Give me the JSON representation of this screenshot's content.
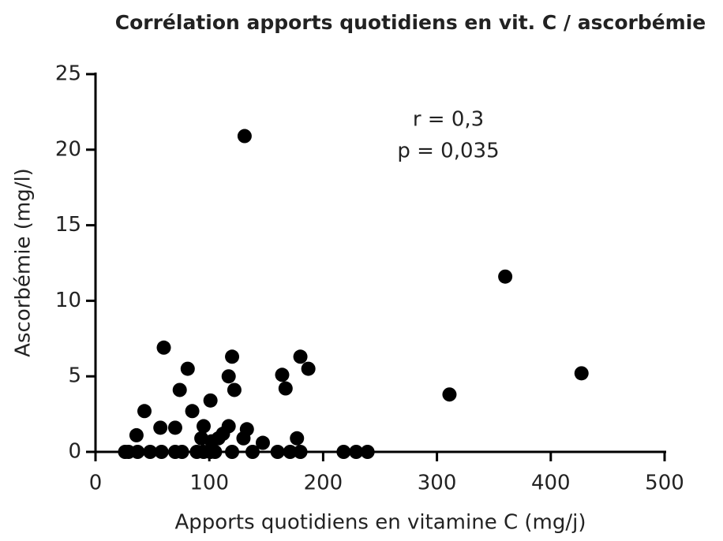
{
  "chart_data": {
    "type": "scatter",
    "title": "Corrélation apports quotidiens en vit. C / ascorbémie",
    "xlabel": "Apports quotidiens en vitamine C (mg/j)",
    "ylabel": "Ascorbémie (mg/l)",
    "annotations": [
      "r = 0,3",
      "p = 0,035"
    ],
    "color": "#000000",
    "x": [
      26,
      29,
      37,
      36,
      43,
      48,
      57,
      58,
      60,
      70,
      70,
      74,
      76,
      81,
      85,
      89,
      93,
      95,
      95,
      101,
      101,
      102,
      105,
      108,
      112,
      117,
      117,
      120,
      120,
      122,
      131,
      130,
      133,
      138,
      147,
      160,
      164,
      167,
      171,
      177,
      180,
      180,
      187,
      218,
      229,
      239,
      311,
      360,
      427
    ],
    "y": [
      0,
      0,
      0,
      1.1,
      2.7,
      0,
      1.6,
      0,
      6.9,
      1.6,
      0,
      4.1,
      0,
      5.5,
      2.7,
      0,
      0.9,
      1.7,
      0,
      3.4,
      0,
      0.7,
      0,
      0.9,
      1.2,
      1.7,
      5.0,
      6.3,
      0,
      4.1,
      20.9,
      0.9,
      1.5,
      0,
      0.6,
      0,
      5.1,
      4.2,
      0,
      0.9,
      6.3,
      0,
      5.5,
      0,
      0,
      0,
      3.8,
      11.6,
      5.2
    ],
    "xlim": [
      0,
      500
    ],
    "xticks": [
      0,
      100,
      200,
      300,
      400,
      500
    ],
    "ylim": [
      0,
      25
    ],
    "yticks": [
      0,
      5,
      10,
      15,
      20,
      25
    ]
  }
}
